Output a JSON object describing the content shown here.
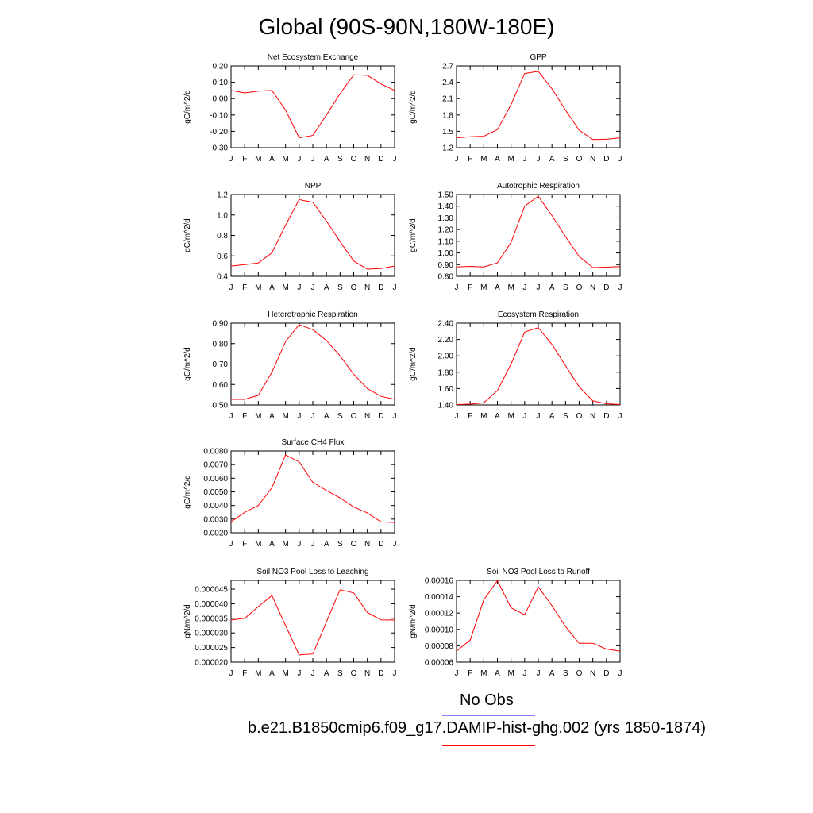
{
  "title": "Global (90S-90N,180W-180E)",
  "months": [
    "J",
    "F",
    "M",
    "A",
    "M",
    "J",
    "J",
    "A",
    "S",
    "O",
    "N",
    "D",
    "J"
  ],
  "colors": {
    "model": "#ff0000",
    "obs": "#8080ff",
    "axis": "#000000"
  },
  "legend": {
    "obs_label": "No Obs",
    "model_label": "b.e21.B1850cmip6.f09_g17.DAMIP-hist-ghg.002 (yrs 1850-1874)"
  },
  "chart_data": [
    {
      "id": "nee",
      "type": "line",
      "title": "Net Ecosystem Exchange",
      "ylabel": "gC/m^2/d",
      "ylim": [
        -0.3,
        0.2
      ],
      "yticks": [
        "0.20",
        "0.10",
        "0.00",
        "-0.10",
        "-0.20",
        "-0.30"
      ],
      "ytick_values": [
        0.2,
        0.1,
        0.0,
        -0.1,
        -0.2,
        -0.3
      ],
      "values": [
        0.05,
        0.035,
        0.046,
        0.05,
        -0.07,
        -0.24,
        -0.225,
        -0.1,
        0.03,
        0.145,
        0.142,
        0.09,
        0.05
      ]
    },
    {
      "id": "gpp",
      "type": "line",
      "title": "GPP",
      "ylabel": "gC/m^2/d",
      "ylim": [
        1.2,
        2.7
      ],
      "yticks": [
        "2.7",
        "2.4",
        "2.1",
        "1.8",
        "1.5",
        "1.2"
      ],
      "ytick_values": [
        2.7,
        2.4,
        2.1,
        1.8,
        1.5,
        1.2
      ],
      "values": [
        1.38,
        1.4,
        1.41,
        1.53,
        1.99,
        2.56,
        2.6,
        2.28,
        1.89,
        1.52,
        1.35,
        1.355,
        1.38
      ]
    },
    {
      "id": "npp",
      "type": "line",
      "title": "NPP",
      "ylabel": "gC/m^2/d",
      "ylim": [
        0.4,
        1.2
      ],
      "yticks": [
        "1.2",
        "1.0",
        "0.8",
        "0.6",
        "0.4"
      ],
      "ytick_values": [
        1.2,
        1.0,
        0.8,
        0.6,
        0.4
      ],
      "values": [
        0.5,
        0.515,
        0.53,
        0.63,
        0.9,
        1.15,
        1.125,
        0.94,
        0.74,
        0.55,
        0.47,
        0.475,
        0.5
      ]
    },
    {
      "id": "ar",
      "type": "line",
      "title": "Autotrophic Respiration",
      "ylabel": "gC/m^2/d",
      "ylim": [
        0.8,
        1.5
      ],
      "yticks": [
        "1.50",
        "1.40",
        "1.30",
        "1.20",
        "1.10",
        "1.00",
        "0.90",
        "0.80"
      ],
      "ytick_values": [
        1.5,
        1.4,
        1.3,
        1.2,
        1.1,
        1.0,
        0.9,
        0.8
      ],
      "values": [
        0.88,
        0.885,
        0.88,
        0.915,
        1.09,
        1.4,
        1.485,
        1.32,
        1.14,
        0.97,
        0.875,
        0.878,
        0.883
      ]
    },
    {
      "id": "hr",
      "type": "line",
      "title": "Heterotrophic Respiration",
      "ylabel": "gC/m^2/d",
      "ylim": [
        0.5,
        0.9
      ],
      "yticks": [
        "0.90",
        "0.80",
        "0.70",
        "0.60",
        "0.50"
      ],
      "ytick_values": [
        0.9,
        0.8,
        0.7,
        0.6,
        0.5
      ],
      "values": [
        0.527,
        0.527,
        0.547,
        0.66,
        0.81,
        0.893,
        0.868,
        0.815,
        0.74,
        0.65,
        0.58,
        0.542,
        0.527
      ]
    },
    {
      "id": "er",
      "type": "line",
      "title": "Ecosystem Respiration",
      "ylabel": "gC/m^2/d",
      "ylim": [
        1.4,
        2.4
      ],
      "yticks": [
        "2.40",
        "2.20",
        "2.00",
        "1.80",
        "1.60",
        "1.40"
      ],
      "ytick_values": [
        2.4,
        2.2,
        2.0,
        1.8,
        1.6,
        1.4
      ],
      "values": [
        1.405,
        1.41,
        1.425,
        1.575,
        1.9,
        2.29,
        2.345,
        2.14,
        1.88,
        1.62,
        1.45,
        1.415,
        1.405
      ]
    },
    {
      "id": "ch4",
      "type": "line",
      "title": "Surface CH4 Flux",
      "ylabel": "gC/m^2/d",
      "ylim": [
        0.002,
        0.008
      ],
      "yticks": [
        "0.0080",
        "0.0070",
        "0.0060",
        "0.0050",
        "0.0040",
        "0.0030",
        "0.0020"
      ],
      "ytick_values": [
        0.008,
        0.007,
        0.006,
        0.005,
        0.004,
        0.003,
        0.002
      ],
      "values": [
        0.0028,
        0.0035,
        0.004,
        0.0053,
        0.0077,
        0.0072,
        0.0057,
        0.0051,
        0.00455,
        0.0039,
        0.00345,
        0.0028,
        0.00275
      ]
    },
    {
      "id": "leach",
      "type": "line",
      "title": "Soil NO3 Pool Loss to Leaching",
      "ylabel": "gN/m^2/d",
      "ylim": [
        2e-05,
        4.8e-05
      ],
      "yticks": [
        "0.000045",
        "0.000040",
        "0.000035",
        "0.000030",
        "0.000025",
        "0.000020"
      ],
      "ytick_values": [
        4.5e-05,
        4e-05,
        3.5e-05,
        3e-05,
        2.5e-05,
        2e-05
      ],
      "values": [
        3.44e-05,
        3.5e-05,
        3.9e-05,
        4.28e-05,
        3.25e-05,
        2.25e-05,
        2.28e-05,
        3.38e-05,
        4.48e-05,
        4.37e-05,
        3.7e-05,
        3.45e-05,
        3.44e-05
      ]
    },
    {
      "id": "runoff",
      "type": "line",
      "title": "Soil NO3 Pool Loss to Runoff",
      "ylabel": "gN/m^2/d",
      "ylim": [
        6e-05,
        0.00016
      ],
      "yticks": [
        "0.00016",
        "0.00014",
        "0.00012",
        "0.00010",
        "0.00008",
        "0.00006"
      ],
      "ytick_values": [
        0.00016,
        0.00014,
        0.00012,
        0.0001,
        8e-05,
        6e-05
      ],
      "values": [
        7.35e-05,
        8.7e-05,
        0.000136,
        0.0001595,
        0.0001265,
        0.000118,
        0.000152,
        0.000129,
        0.0001035,
        8.3e-05,
        8.3e-05,
        7.6e-05,
        7.35e-05
      ]
    }
  ]
}
